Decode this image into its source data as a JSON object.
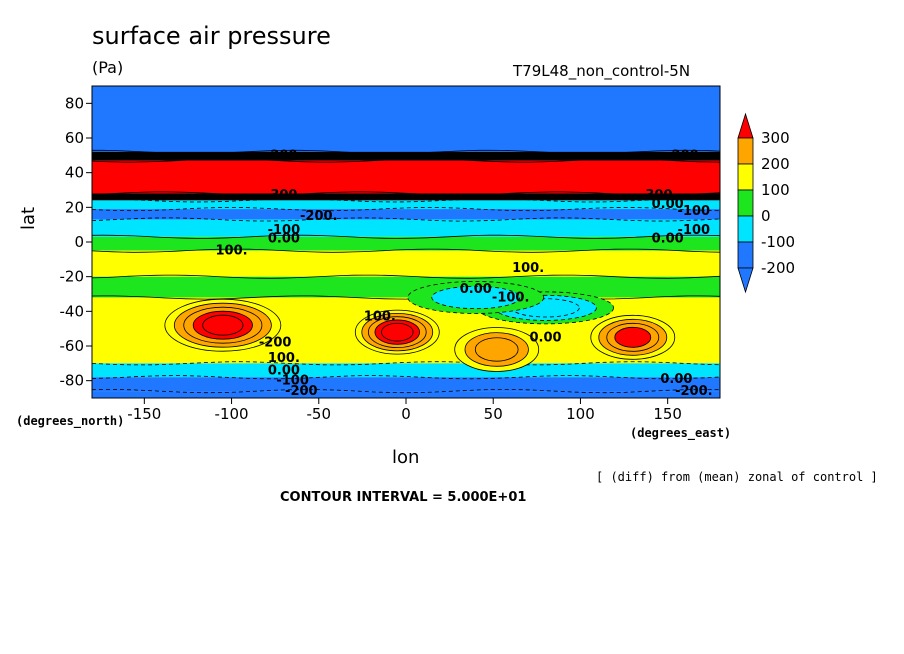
{
  "header": {
    "title": "surface air pressure",
    "units": "(Pa)",
    "run": "T79L48_non_control-5N"
  },
  "footer": {
    "x_units_note": "(degrees_north)",
    "y_units_note": "(degrees_east)",
    "diff_note": "[ (diff) from (mean) zonal of control ]",
    "contour_interval": "CONTOUR INTERVAL = 5.000E+01"
  },
  "chart_data": {
    "type": "heatmap",
    "title": "surface air pressure",
    "subtitle": "(Pa)",
    "xlabel": "lon",
    "ylabel": "lat",
    "xlim": [
      -180,
      180
    ],
    "ylim": [
      -90,
      90
    ],
    "x_ticks": [
      -150,
      -100,
      -50,
      0,
      50,
      100,
      150
    ],
    "y_ticks": [
      -80,
      -60,
      -40,
      -20,
      0,
      20,
      40,
      60,
      80
    ],
    "colorbar": {
      "ticks": [
        -200,
        -100,
        0,
        100,
        200,
        300
      ],
      "colors": [
        "#1f78ff",
        "#00e5ff",
        "#1ee61e",
        "#ffff00",
        "#ffa500",
        "#ff0000"
      ],
      "extend": "both",
      "location": "right"
    },
    "contour_interval": 50,
    "bands": [
      {
        "lat": [
          50,
          90
        ],
        "value": -250
      },
      {
        "lat": [
          47,
          52
        ],
        "value": 999
      },
      {
        "lat": [
          28,
          47
        ],
        "value": 350
      },
      {
        "lat": [
          24,
          28
        ],
        "value": 999
      },
      {
        "lat": [
          19,
          24
        ],
        "value": -80
      },
      {
        "lat": [
          13,
          19
        ],
        "value": -170
      },
      {
        "lat": [
          3,
          13
        ],
        "value": -120
      },
      {
        "lat": [
          -5,
          3
        ],
        "value": 20
      },
      {
        "lat": [
          -20,
          -5
        ],
        "value": 130
      },
      {
        "lat": [
          -32,
          -20
        ],
        "value": 30
      },
      {
        "lat": [
          -70,
          -32
        ],
        "value": 60
      },
      {
        "lat": [
          -78,
          -70
        ],
        "value": -60
      },
      {
        "lat": [
          -86,
          -78
        ],
        "value": -180
      },
      {
        "lat": [
          -90,
          -86
        ],
        "value": -250
      }
    ],
    "highs": [
      {
        "lon": -105,
        "lat": -48,
        "value": 320
      },
      {
        "lon": -5,
        "lat": -52,
        "value": 310
      },
      {
        "lon": 130,
        "lat": -55,
        "value": 260
      },
      {
        "lon": 52,
        "lat": -62,
        "value": 230
      }
    ],
    "lows": [
      {
        "lon": 80,
        "lat": -38,
        "value": -180
      },
      {
        "lon": 40,
        "lat": -32,
        "value": -110
      }
    ],
    "contour_labels": [
      {
        "text": "100.",
        "lon": -100,
        "lat": -5
      },
      {
        "text": "100.",
        "lon": 70,
        "lat": -15
      },
      {
        "text": "0.00",
        "lon": 40,
        "lat": -27
      },
      {
        "text": "-100.",
        "lon": 60,
        "lat": -32
      },
      {
        "text": "100.",
        "lon": -15,
        "lat": -43
      },
      {
        "text": "0.00",
        "lon": 80,
        "lat": -55
      },
      {
        "text": "-200",
        "lon": -75,
        "lat": -58
      },
      {
        "text": "100.",
        "lon": -70,
        "lat": -67
      },
      {
        "text": "0.00",
        "lon": -70,
        "lat": -74
      },
      {
        "text": "-100",
        "lon": -65,
        "lat": -80
      },
      {
        "text": "-200",
        "lon": -60,
        "lat": -86
      },
      {
        "text": "0.00",
        "lon": 155,
        "lat": -79
      },
      {
        "text": "-200.",
        "lon": 165,
        "lat": -86
      },
      {
        "text": "-200.",
        "lon": -50,
        "lat": 15
      },
      {
        "text": "-100",
        "lon": -70,
        "lat": 7
      },
      {
        "text": "0.00",
        "lon": -70,
        "lat": 2
      },
      {
        "text": "0.00",
        "lon": 150,
        "lat": 2
      },
      {
        "text": "-100",
        "lon": 165,
        "lat": 7
      },
      {
        "text": "0.00",
        "lon": 150,
        "lat": 22
      },
      {
        "text": "-100",
        "lon": 165,
        "lat": 18
      },
      {
        "text": "300",
        "lon": -70,
        "lat": 27
      },
      {
        "text": "300",
        "lon": 145,
        "lat": 27
      },
      {
        "text": "200",
        "lon": -70,
        "lat": 50
      },
      {
        "text": "200",
        "lon": 160,
        "lat": 50
      }
    ]
  }
}
